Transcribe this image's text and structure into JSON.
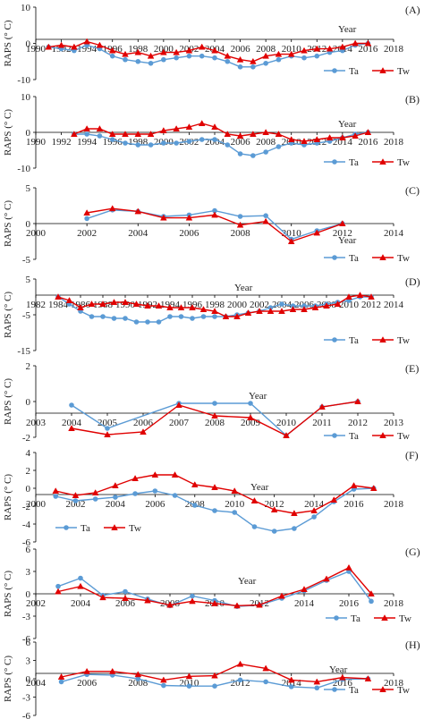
{
  "figure": {
    "colors": {
      "Ta": "#5B9BD5",
      "Tw": "#E00000",
      "axis": "#000000"
    },
    "panels": [
      {
        "letter": "(A)",
        "ylabel": "RAPS (° C)",
        "xtitle": "Year",
        "legend": [
          "Ta",
          "Tw"
        ],
        "xticks": [
          "1990",
          "1992",
          "1994",
          "1996",
          "1998",
          "2000",
          "2002",
          "2004",
          "2006",
          "2008",
          "2010",
          "2012",
          "2014",
          "2016",
          "2018"
        ],
        "yticks": [
          "10",
          "0",
          "-10"
        ]
      },
      {
        "letter": "(B)",
        "ylabel": "RAPS (° C)",
        "xtitle": "Year",
        "legend": [
          "Ta",
          "Tw"
        ],
        "xticks": [
          "1990",
          "1992",
          "1994",
          "1996",
          "1998",
          "2000",
          "2002",
          "2004",
          "2006",
          "2008",
          "2010",
          "2012",
          "2014",
          "2016",
          "2018"
        ],
        "yticks": [
          "10",
          "0",
          "-10"
        ]
      },
      {
        "letter": "(C)",
        "ylabel": "RAPS (° C)",
        "xtitle": "Year",
        "legend": [
          "Ta",
          "Tw"
        ],
        "xticks": [
          "2000",
          "2002",
          "2004",
          "2006",
          "2008",
          "2010",
          "2012",
          "2014"
        ],
        "yticks": [
          "5",
          "0",
          "-5"
        ]
      },
      {
        "letter": "(D)",
        "ylabel": "RAPS (° C)",
        "xtitle": "Year",
        "legend": [
          "Ta",
          "Tw"
        ],
        "xticks": [
          "1982",
          "1984",
          "1986",
          "1988",
          "1990",
          "1992",
          "1994",
          "1996",
          "1998",
          "2000",
          "2002",
          "2004",
          "2006",
          "2008",
          "2010",
          "2012",
          "2014"
        ],
        "yticks": [
          "5",
          "-5",
          "-15"
        ]
      },
      {
        "letter": "(E)",
        "ylabel": "RAPS (° C)",
        "xtitle": "Year",
        "legend": [
          "Ta",
          "Tw"
        ],
        "xticks": [
          "2003",
          "2004",
          "2005",
          "2006",
          "2007",
          "2008",
          "2009",
          "2010",
          "2011",
          "2012",
          "2013"
        ],
        "yticks": [
          "2",
          "0",
          "-2"
        ]
      },
      {
        "letter": "(F)",
        "ylabel": "RAPS (° C)",
        "xtitle": "Year",
        "legend": [
          "Ta",
          "Tw"
        ],
        "xticks": [
          "2000",
          "2002",
          "2004",
          "2006",
          "2008",
          "2010",
          "2012",
          "2014",
          "2016",
          "2018"
        ],
        "yticks": [
          "4",
          "2",
          "0",
          "-2",
          "-4",
          "-6"
        ]
      },
      {
        "letter": "(G)",
        "ylabel": "RAPS (° C)",
        "xtitle": "Year",
        "legend": [
          "Ta",
          "Tw"
        ],
        "xticks": [
          "2002",
          "2004",
          "2006",
          "2008",
          "2010",
          "2012",
          "2014",
          "2016",
          "2018"
        ],
        "yticks": [
          "6",
          "3",
          "0",
          "-3",
          "-6"
        ]
      },
      {
        "letter": "(H)",
        "ylabel": "RAPS (° C)",
        "xtitle": "Year",
        "legend": [
          "Ta",
          "Tw"
        ],
        "xticks": [
          "2004",
          "2006",
          "2008",
          "2010",
          "2012",
          "2014",
          "2016",
          "2018"
        ],
        "yticks": [
          "6",
          "3",
          "0",
          "-3",
          "-6"
        ]
      }
    ]
  },
  "chart_data": [
    {
      "type": "line",
      "panel": "(A)",
      "xlim": [
        1990,
        2018
      ],
      "ylim": [
        -10,
        10
      ],
      "ylabel": "RAPS (° C)",
      "xlabel": "Year",
      "series": [
        {
          "name": "Ta",
          "marker": "circle",
          "x": [
            1991,
            1992,
            1993,
            1994,
            1995,
            1996,
            1997,
            1998,
            1999,
            2000,
            2001,
            2002,
            2003,
            2004,
            2005,
            2006,
            2007,
            2008,
            2009,
            2010,
            2011,
            2012,
            2013,
            2014,
            2015,
            2016
          ],
          "y": [
            -1,
            -1.5,
            -2,
            -0.5,
            -1.5,
            -3.5,
            -4.5,
            -5,
            -5.5,
            -4.5,
            -4,
            -3.5,
            -3.5,
            -4,
            -5,
            -6.5,
            -6.5,
            -5.5,
            -4.5,
            -3.5,
            -4,
            -3.5,
            -2.5,
            -2,
            -0.5,
            0
          ]
        },
        {
          "name": "Tw",
          "marker": "triangle",
          "x": [
            1991,
            1992,
            1993,
            1994,
            1995,
            1996,
            1997,
            1998,
            1999,
            2000,
            2001,
            2002,
            2003,
            2004,
            2005,
            2006,
            2007,
            2008,
            2009,
            2010,
            2011,
            2012,
            2013,
            2014,
            2015,
            2016
          ],
          "y": [
            -1,
            -0.5,
            -1,
            0.5,
            -0.5,
            -2,
            -3,
            -2.5,
            -3.5,
            -2.5,
            -2.5,
            -2,
            -1,
            -2,
            -3.5,
            -4.5,
            -5,
            -3.5,
            -3,
            -3,
            -2,
            -1.5,
            -1.5,
            -1,
            0,
            0
          ]
        }
      ]
    },
    {
      "type": "line",
      "panel": "(B)",
      "xlim": [
        1990,
        2018
      ],
      "ylim": [
        -10,
        10
      ],
      "ylabel": "RAPS (° C)",
      "xlabel": "Year",
      "series": [
        {
          "name": "Ta",
          "marker": "circle",
          "x": [
            1993,
            1994,
            1995,
            1996,
            1997,
            1998,
            1999,
            2000,
            2001,
            2002,
            2003,
            2004,
            2005,
            2006,
            2007,
            2008,
            2009,
            2010,
            2011,
            2012,
            2013,
            2014,
            2015,
            2016
          ],
          "y": [
            -0.5,
            -0.5,
            -1,
            -2,
            -3,
            -3.5,
            -3.5,
            -3,
            -3,
            -2.5,
            -2,
            -2,
            -3.5,
            -6,
            -6.5,
            -5.5,
            -4,
            -3,
            -3.5,
            -3,
            -2.5,
            -1.5,
            -0.5,
            0
          ]
        },
        {
          "name": "Tw",
          "marker": "triangle",
          "x": [
            1993,
            1994,
            1995,
            1996,
            1997,
            1998,
            1999,
            2000,
            2001,
            2002,
            2003,
            2004,
            2005,
            2006,
            2007,
            2008,
            2009,
            2010,
            2011,
            2012,
            2013,
            2014,
            2015,
            2016
          ],
          "y": [
            -0.5,
            1,
            1,
            -0.5,
            -0.5,
            -0.5,
            -0.5,
            0.5,
            1,
            1.5,
            2.5,
            1.5,
            -0.5,
            -1,
            -0.5,
            0,
            -0.5,
            -2,
            -2.5,
            -2,
            -1.5,
            -1.5,
            -1,
            0
          ]
        }
      ]
    },
    {
      "type": "line",
      "panel": "(C)",
      "xlim": [
        2000,
        2014
      ],
      "ylim": [
        -5,
        5
      ],
      "ylabel": "RAPS (° C)",
      "xlabel": "Year",
      "series": [
        {
          "name": "Ta",
          "marker": "circle",
          "x": [
            2002,
            2003,
            2004,
            2005,
            2006,
            2007,
            2008,
            2009,
            2010,
            2011,
            2012
          ],
          "y": [
            0.7,
            1.9,
            1.7,
            1,
            1.2,
            1.8,
            1,
            1.1,
            -2.2,
            -1,
            0
          ]
        },
        {
          "name": "Tw",
          "marker": "triangle",
          "x": [
            2002,
            2003,
            2004,
            2005,
            2006,
            2007,
            2008,
            2009,
            2010,
            2011,
            2012
          ],
          "y": [
            1.5,
            2.1,
            1.7,
            0.8,
            0.8,
            1.2,
            -0.2,
            0.3,
            -2.5,
            -1.3,
            0
          ]
        }
      ]
    },
    {
      "type": "line",
      "panel": "(D)",
      "xlim": [
        1982,
        2014
      ],
      "ylim": [
        -15,
        5
      ],
      "ylabel": "RAPS (° C)",
      "xlabel": "Year",
      "series": [
        {
          "name": "Ta",
          "marker": "circle",
          "x": [
            1984,
            1985,
            1986,
            1987,
            1988,
            1989,
            1990,
            1991,
            1992,
            1993,
            1994,
            1995,
            1996,
            1997,
            1998,
            1999,
            2000,
            2001,
            2002,
            2003,
            2004,
            2005,
            2006,
            2007,
            2008,
            2009,
            2010,
            2011,
            2012
          ],
          "y": [
            0,
            -2,
            -4,
            -5.5,
            -5.5,
            -6,
            -6,
            -7,
            -7,
            -7,
            -5.5,
            -5.5,
            -6,
            -5.5,
            -5.5,
            -5.5,
            -5,
            -4.5,
            -4,
            -3,
            -2,
            -2.5,
            -2.5,
            -2.5,
            -2,
            -1.5,
            -1,
            0,
            0
          ]
        },
        {
          "name": "Tw",
          "marker": "triangle",
          "x": [
            1984,
            1985,
            1986,
            1987,
            1988,
            1989,
            1990,
            1991,
            1992,
            1993,
            1994,
            1995,
            1996,
            1997,
            1998,
            1999,
            2000,
            2001,
            2002,
            2003,
            2004,
            2005,
            2006,
            2007,
            2008,
            2009,
            2010,
            2011,
            2012
          ],
          "y": [
            0,
            -1,
            -3,
            -2,
            -2,
            -1.5,
            -1.5,
            -2,
            -2.5,
            -2.5,
            -3,
            -3,
            -3,
            -3.5,
            -4,
            -5.5,
            -5.5,
            -4.5,
            -4,
            -4,
            -4,
            -3.5,
            -3.5,
            -3,
            -2.5,
            -2,
            0,
            0.5,
            0
          ]
        }
      ]
    },
    {
      "type": "line",
      "panel": "(E)",
      "xlim": [
        2003,
        2013
      ],
      "ylim": [
        -2,
        2
      ],
      "ylabel": "RAPS (° C)",
      "xlabel": "Year",
      "series": [
        {
          "name": "Ta",
          "marker": "circle",
          "x": [
            2004,
            2005,
            2007,
            2008,
            2009,
            2010,
            2011,
            2012
          ],
          "y": [
            -0.2,
            -1.5,
            -0.1,
            -0.1,
            -0.1,
            -1.9,
            -0.3,
            0
          ]
        },
        {
          "name": "Tw",
          "marker": "triangle",
          "x": [
            2004,
            2005,
            2006,
            2007,
            2008,
            2009,
            2010,
            2011,
            2012
          ],
          "y": [
            -1.5,
            -1.85,
            -1.7,
            -0.2,
            -0.8,
            -0.9,
            -1.9,
            -0.3,
            0
          ]
        }
      ]
    },
    {
      "type": "line",
      "panel": "(F)",
      "xlim": [
        2000,
        2018
      ],
      "ylim": [
        -6,
        4
      ],
      "ylabel": "RAPS (° C)",
      "xlabel": "Year",
      "series": [
        {
          "name": "Ta",
          "marker": "circle",
          "x": [
            2001,
            2002,
            2003,
            2004,
            2005,
            2006,
            2007,
            2008,
            2009,
            2010,
            2011,
            2012,
            2013,
            2014,
            2015,
            2016,
            2017
          ],
          "y": [
            -0.9,
            -1.4,
            -1.2,
            -1,
            -0.6,
            -0.3,
            -0.8,
            -1.9,
            -2.5,
            -2.7,
            -4.3,
            -4.8,
            -4.5,
            -3.2,
            -1.5,
            -0.1,
            0
          ]
        },
        {
          "name": "Tw",
          "marker": "triangle",
          "x": [
            2001,
            2002,
            2003,
            2004,
            2005,
            2006,
            2007,
            2008,
            2009,
            2010,
            2011,
            2012,
            2013,
            2014,
            2015,
            2016,
            2017
          ],
          "y": [
            -0.3,
            -0.8,
            -0.5,
            0.3,
            1.1,
            1.5,
            1.5,
            0.4,
            0.1,
            -0.3,
            -1.4,
            -2.4,
            -2.8,
            -2.5,
            -1.3,
            0.3,
            0
          ]
        }
      ]
    },
    {
      "type": "line",
      "panel": "(G)",
      "xlim": [
        2002,
        2018
      ],
      "ylim": [
        -6,
        6
      ],
      "ylabel": "RAPS (° C)",
      "xlabel": "Year",
      "series": [
        {
          "name": "Ta",
          "marker": "circle",
          "x": [
            2003,
            2004,
            2005,
            2006,
            2007,
            2008,
            2009,
            2010,
            2011,
            2012,
            2013,
            2014,
            2015,
            2016,
            2017
          ],
          "y": [
            1,
            2.1,
            -0.2,
            0.3,
            -0.7,
            -1.6,
            -0.3,
            -0.9,
            -1.7,
            -1.5,
            -0.6,
            0.4,
            1.8,
            3,
            -1
          ]
        },
        {
          "name": "Tw",
          "marker": "triangle",
          "x": [
            2003,
            2004,
            2005,
            2006,
            2007,
            2008,
            2009,
            2010,
            2011,
            2012,
            2013,
            2014,
            2015,
            2016,
            2017
          ],
          "y": [
            0.3,
            1,
            -0.5,
            -0.6,
            -0.9,
            -1.5,
            -1,
            -1.3,
            -1.6,
            -1.5,
            -0.3,
            0.6,
            2,
            3.5,
            0
          ]
        }
      ]
    },
    {
      "type": "line",
      "panel": "(H)",
      "xlim": [
        2004,
        2018
      ],
      "ylim": [
        -6,
        6
      ],
      "ylabel": "RAPS (° C)",
      "xlabel": "Year",
      "series": [
        {
          "name": "Ta",
          "marker": "circle",
          "x": [
            2005,
            2006,
            2007,
            2008,
            2009,
            2010,
            2011,
            2012,
            2013,
            2014,
            2015,
            2016,
            2017
          ],
          "y": [
            -0.5,
            0.7,
            0.6,
            0,
            -1.1,
            -1.2,
            -1.2,
            -0.2,
            -0.5,
            -1.3,
            -1.5,
            -0.1,
            0
          ]
        },
        {
          "name": "Tw",
          "marker": "triangle",
          "x": [
            2005,
            2006,
            2007,
            2008,
            2009,
            2010,
            2011,
            2012,
            2013,
            2014,
            2015,
            2016,
            2017
          ],
          "y": [
            0.3,
            1.2,
            1.2,
            0.7,
            -0.2,
            0.4,
            0.5,
            2.4,
            1.7,
            -0.2,
            -0.5,
            0.2,
            0
          ]
        }
      ]
    }
  ]
}
